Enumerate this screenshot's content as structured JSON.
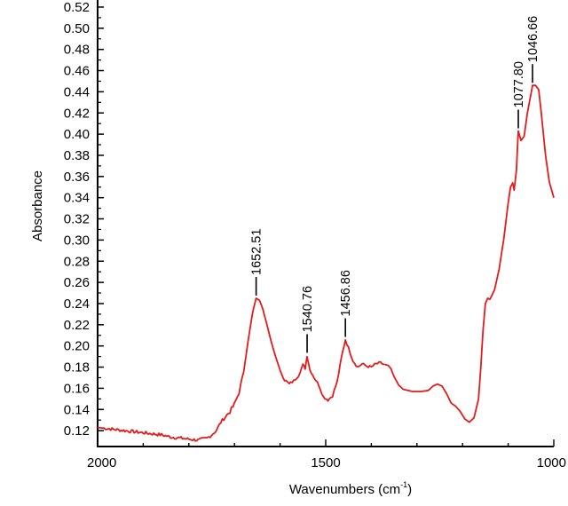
{
  "chart_data": {
    "type": "line",
    "xlabel": "Wavenumbers (cm",
    "xlabel_sup": "-1",
    "xlabel_close": ")",
    "ylabel": "Absorbance",
    "xlim": [
      2000,
      1000
    ],
    "ylim": [
      0.105,
      0.525
    ],
    "x_reversed": true,
    "x_ticks": [
      2000,
      1500,
      1000
    ],
    "x_tick_labels": [
      "2000",
      "1500",
      "1000"
    ],
    "y_ticks": [
      0.12,
      0.14,
      0.16,
      0.18,
      0.2,
      0.22,
      0.24,
      0.26,
      0.28,
      0.3,
      0.32,
      0.34,
      0.36,
      0.38,
      0.4,
      0.42,
      0.44,
      0.46,
      0.48,
      0.5,
      0.52
    ],
    "y_tick_labels": [
      "0.12",
      "0.14",
      "0.16",
      "0.18",
      "0.20",
      "0.22",
      "0.24",
      "0.26",
      "0.28",
      "0.30",
      "0.32",
      "0.34",
      "0.36",
      "0.38",
      "0.40",
      "0.42",
      "0.44",
      "0.46",
      "0.48",
      "0.50",
      "0.52"
    ],
    "grid": false,
    "line_color": "#e31b1b",
    "series": [
      {
        "values_xy": [
          [
            2000,
            0.123
          ],
          [
            1960,
            0.121
          ],
          [
            1920,
            0.119
          ],
          [
            1880,
            0.117
          ],
          [
            1860,
            0.116
          ],
          [
            1840,
            0.114
          ],
          [
            1820,
            0.113
          ],
          [
            1800,
            0.112
          ],
          [
            1780,
            0.111
          ],
          [
            1770,
            0.112
          ],
          [
            1760,
            0.113
          ],
          [
            1750,
            0.116
          ],
          [
            1740,
            0.12
          ],
          [
            1730,
            0.128
          ],
          [
            1720,
            0.133
          ],
          [
            1710,
            0.138
          ],
          [
            1700,
            0.145
          ],
          [
            1690,
            0.156
          ],
          [
            1680,
            0.175
          ],
          [
            1670,
            0.205
          ],
          [
            1660,
            0.232
          ],
          [
            1652.51,
            0.245
          ],
          [
            1645,
            0.243
          ],
          [
            1638,
            0.235
          ],
          [
            1630,
            0.222
          ],
          [
            1620,
            0.205
          ],
          [
            1610,
            0.19
          ],
          [
            1600,
            0.177
          ],
          [
            1590,
            0.168
          ],
          [
            1580,
            0.164
          ],
          [
            1570,
            0.167
          ],
          [
            1560,
            0.172
          ],
          [
            1550,
            0.182
          ],
          [
            1545,
            0.179
          ],
          [
            1540.76,
            0.191
          ],
          [
            1535,
            0.178
          ],
          [
            1525,
            0.17
          ],
          [
            1515,
            0.163
          ],
          [
            1505,
            0.152
          ],
          [
            1495,
            0.149
          ],
          [
            1485,
            0.153
          ],
          [
            1475,
            0.166
          ],
          [
            1465,
            0.19
          ],
          [
            1456.86,
            0.206
          ],
          [
            1450,
            0.198
          ],
          [
            1440,
            0.186
          ],
          [
            1430,
            0.18
          ],
          [
            1420,
            0.183
          ],
          [
            1410,
            0.181
          ],
          [
            1400,
            0.18
          ],
          [
            1390,
            0.183
          ],
          [
            1380,
            0.184
          ],
          [
            1370,
            0.182
          ],
          [
            1360,
            0.18
          ],
          [
            1350,
            0.171
          ],
          [
            1340,
            0.163
          ],
          [
            1330,
            0.159
          ],
          [
            1310,
            0.157
          ],
          [
            1290,
            0.157
          ],
          [
            1275,
            0.158
          ],
          [
            1265,
            0.162
          ],
          [
            1255,
            0.164
          ],
          [
            1245,
            0.162
          ],
          [
            1235,
            0.155
          ],
          [
            1225,
            0.146
          ],
          [
            1215,
            0.143
          ],
          [
            1205,
            0.138
          ],
          [
            1195,
            0.131
          ],
          [
            1185,
            0.128
          ],
          [
            1175,
            0.132
          ],
          [
            1165,
            0.15
          ],
          [
            1160,
            0.18
          ],
          [
            1155,
            0.215
          ],
          [
            1150,
            0.24
          ],
          [
            1145,
            0.245
          ],
          [
            1140,
            0.244
          ],
          [
            1130,
            0.253
          ],
          [
            1120,
            0.272
          ],
          [
            1110,
            0.3
          ],
          [
            1100,
            0.335
          ],
          [
            1095,
            0.35
          ],
          [
            1090,
            0.354
          ],
          [
            1087,
            0.347
          ],
          [
            1082,
            0.366
          ],
          [
            1077.8,
            0.403
          ],
          [
            1072,
            0.394
          ],
          [
            1065,
            0.398
          ],
          [
            1058,
            0.42
          ],
          [
            1050,
            0.438
          ],
          [
            1046.66,
            0.446
          ],
          [
            1040,
            0.446
          ],
          [
            1033,
            0.442
          ],
          [
            1025,
            0.41
          ],
          [
            1018,
            0.38
          ],
          [
            1010,
            0.355
          ],
          [
            1000,
            0.34
          ]
        ]
      }
    ],
    "peaks": [
      {
        "x": 1652.51,
        "y": 0.245,
        "label": "1652.51"
      },
      {
        "x": 1540.76,
        "y": 0.191,
        "label": "1540.76"
      },
      {
        "x": 1456.86,
        "y": 0.206,
        "label": "1456.86"
      },
      {
        "x": 1077.8,
        "y": 0.403,
        "label": "1077.80"
      },
      {
        "x": 1046.66,
        "y": 0.446,
        "label": "1046.66"
      }
    ]
  }
}
